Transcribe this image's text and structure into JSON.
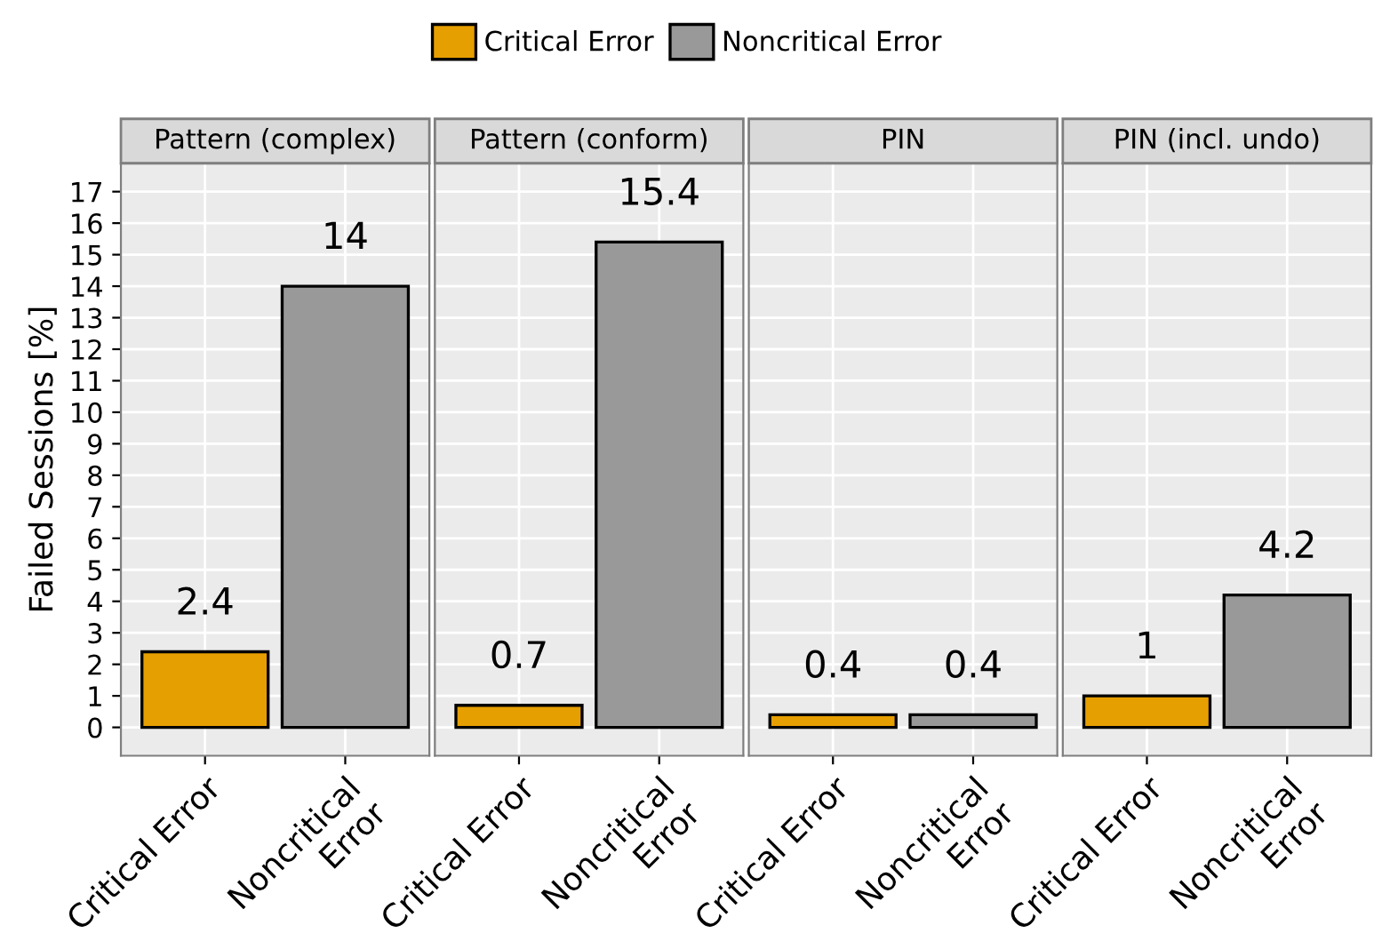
{
  "chart_data": [
    {
      "type": "bar",
      "title": "Pattern (complex)",
      "ylabel": "Failed Sessions [%]",
      "categories": [
        "Critical Error",
        "Noncritical\nError"
      ],
      "series": [
        {
          "name": "Critical Error",
          "color": "#e69f00",
          "values": [
            2.4,
            null
          ]
        },
        {
          "name": "Noncritical Error",
          "color": "#999999",
          "values": [
            null,
            14
          ]
        }
      ],
      "ylim": [
        -0.9,
        17.9
      ],
      "yticks": [
        0,
        1,
        2,
        3,
        4,
        5,
        6,
        7,
        8,
        9,
        10,
        11,
        12,
        13,
        14,
        15,
        16,
        17
      ],
      "grid": true,
      "data_labels": true,
      "legend": "top"
    },
    {
      "type": "bar",
      "title": "Pattern (conform)",
      "categories": [
        "Critical Error",
        "Noncritical\nError"
      ],
      "series": [
        {
          "color": "#e69f00",
          "values": [
            0.7,
            null
          ]
        },
        {
          "color": "#999999",
          "values": [
            null,
            15.4
          ]
        }
      ],
      "ylim": [
        -0.9,
        17.9
      ],
      "tick_labels": "x",
      "grid": true,
      "data_labels": true
    },
    {
      "type": "bar",
      "title": "PIN",
      "categories": [
        "Critical Error",
        "Noncritical\nError"
      ],
      "series": [
        {
          "color": "#e69f00",
          "values": [
            0.4,
            null
          ]
        },
        {
          "color": "#999999",
          "values": [
            null,
            0.4
          ]
        }
      ],
      "ylim": [
        -0.9,
        17.9
      ],
      "tick_labels": "x",
      "grid": true,
      "data_labels": true
    },
    {
      "type": "bar",
      "title": "PIN (incl. undo)",
      "categories": [
        "Critical Error",
        "Noncritical\nError"
      ],
      "series": [
        {
          "color": "#e69f00",
          "values": [
            1,
            null
          ]
        },
        {
          "color": "#999999",
          "values": [
            null,
            4.2
          ]
        }
      ],
      "ylim": [
        -0.9,
        17.9
      ],
      "tick_labels": "x",
      "grid": true,
      "data_labels": true
    }
  ]
}
